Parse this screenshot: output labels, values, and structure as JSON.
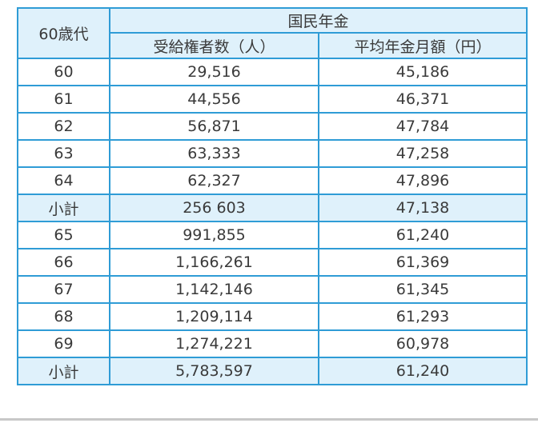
{
  "table": {
    "age_header": "60歳代",
    "group_header": "国民年金",
    "count_header": "受給権者数（人）",
    "amount_header": "平均年金月額（円）",
    "rows": [
      {
        "age": "60",
        "count": "29,516",
        "amount": "45,186",
        "subtotal": false
      },
      {
        "age": "61",
        "count": "44,556",
        "amount": "46,371",
        "subtotal": false
      },
      {
        "age": "62",
        "count": "56,871",
        "amount": "47,784",
        "subtotal": false
      },
      {
        "age": "63",
        "count": "63,333",
        "amount": "47,258",
        "subtotal": false
      },
      {
        "age": "64",
        "count": "62,327",
        "amount": "47,896",
        "subtotal": false
      },
      {
        "age": "小計",
        "count": "256 603",
        "amount": "47,138",
        "subtotal": true
      },
      {
        "age": "65",
        "count": "991,855",
        "amount": "61,240",
        "subtotal": false
      },
      {
        "age": "66",
        "count": "1,166,261",
        "amount": "61,369",
        "subtotal": false
      },
      {
        "age": "67",
        "count": "1,142,146",
        "amount": "61,345",
        "subtotal": false
      },
      {
        "age": "68",
        "count": "1,209,114",
        "amount": "61,293",
        "subtotal": false
      },
      {
        "age": "69",
        "count": "1,274,221",
        "amount": "60,978",
        "subtotal": false
      },
      {
        "age": "小計",
        "count": "5,783,597",
        "amount": "61,240",
        "subtotal": true
      }
    ]
  },
  "colors": {
    "border": "#2f9cd6",
    "header_fill": "#dff1fb",
    "text": "#3a3a3a"
  }
}
